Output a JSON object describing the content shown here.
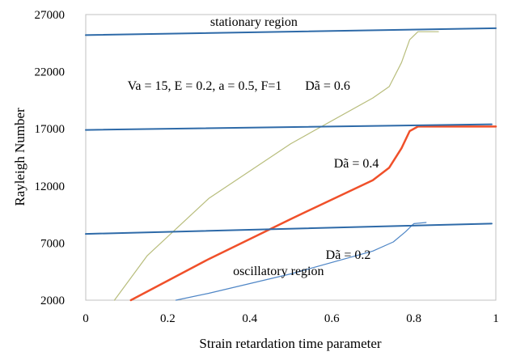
{
  "chart_data": {
    "type": "line",
    "title": "",
    "xlabel": "Strain retardation time parameter",
    "ylabel": "Rayleigh Number",
    "xlim": [
      0,
      1
    ],
    "ylim": [
      2000,
      27000
    ],
    "x_ticks": [
      "0",
      "0.2",
      "0.4",
      "0.6",
      "0.8",
      "1"
    ],
    "x_tick_values": [
      0,
      0.2,
      0.4,
      0.6,
      0.8,
      1
    ],
    "y_ticks": [
      "2000",
      "7000",
      "12000",
      "17000",
      "22000",
      "27000"
    ],
    "y_tick_values": [
      2000,
      7000,
      12000,
      17000,
      22000,
      27000
    ],
    "grid": false,
    "legend": "none",
    "series": [
      {
        "name": "Dã = 0.6",
        "color": "#b8bd7c",
        "points": [
          [
            0.07,
            2000
          ],
          [
            0.15,
            5900
          ],
          [
            0.3,
            10900
          ],
          [
            0.5,
            15700
          ],
          [
            0.7,
            19700
          ],
          [
            0.74,
            20700
          ],
          [
            0.77,
            22800
          ],
          [
            0.79,
            24800
          ],
          [
            0.81,
            25500
          ],
          [
            0.86,
            25500
          ]
        ]
      },
      {
        "name": "Dã = 0.4",
        "color": "#f0502a",
        "points": [
          [
            0.11,
            2000
          ],
          [
            0.3,
            5600
          ],
          [
            0.5,
            9100
          ],
          [
            0.7,
            12500
          ],
          [
            0.74,
            13600
          ],
          [
            0.77,
            15300
          ],
          [
            0.79,
            16800
          ],
          [
            0.81,
            17200
          ],
          [
            1.0,
            17200
          ]
        ]
      },
      {
        "name": "Dã = 0.2",
        "color": "#4f86c6",
        "points": [
          [
            0.22,
            2000
          ],
          [
            0.3,
            2600
          ],
          [
            0.5,
            4300
          ],
          [
            0.7,
            6300
          ],
          [
            0.75,
            7100
          ],
          [
            0.78,
            8000
          ],
          [
            0.8,
            8700
          ],
          [
            0.83,
            8800
          ]
        ]
      },
      {
        "name": "",
        "color": "#2e6aa8",
        "points": [
          [
            0,
            25200
          ],
          [
            1,
            25800
          ]
        ]
      },
      {
        "name": "",
        "color": "#2e6aa8",
        "points": [
          [
            0,
            16900
          ],
          [
            0.99,
            17400
          ]
        ]
      },
      {
        "name": "",
        "color": "#2e6aa8",
        "points": [
          [
            0,
            7800
          ],
          [
            0.99,
            8700
          ]
        ]
      }
    ],
    "annotations": [
      {
        "text": "stationary region",
        "x": 0.41,
        "y": 26000
      },
      {
        "text": "Va = 15, E = 0.2, a = 0.5, F=1",
        "x": 0.29,
        "y": 20400
      },
      {
        "text": "Dã = 0.6",
        "x": 0.59,
        "y": 20400
      },
      {
        "text": "Dã = 0.4",
        "x": 0.66,
        "y": 13600
      },
      {
        "text": "Dã = 0.2",
        "x": 0.64,
        "y": 5600
      },
      {
        "text": "oscillatory region",
        "x": 0.47,
        "y": 4200
      }
    ]
  }
}
